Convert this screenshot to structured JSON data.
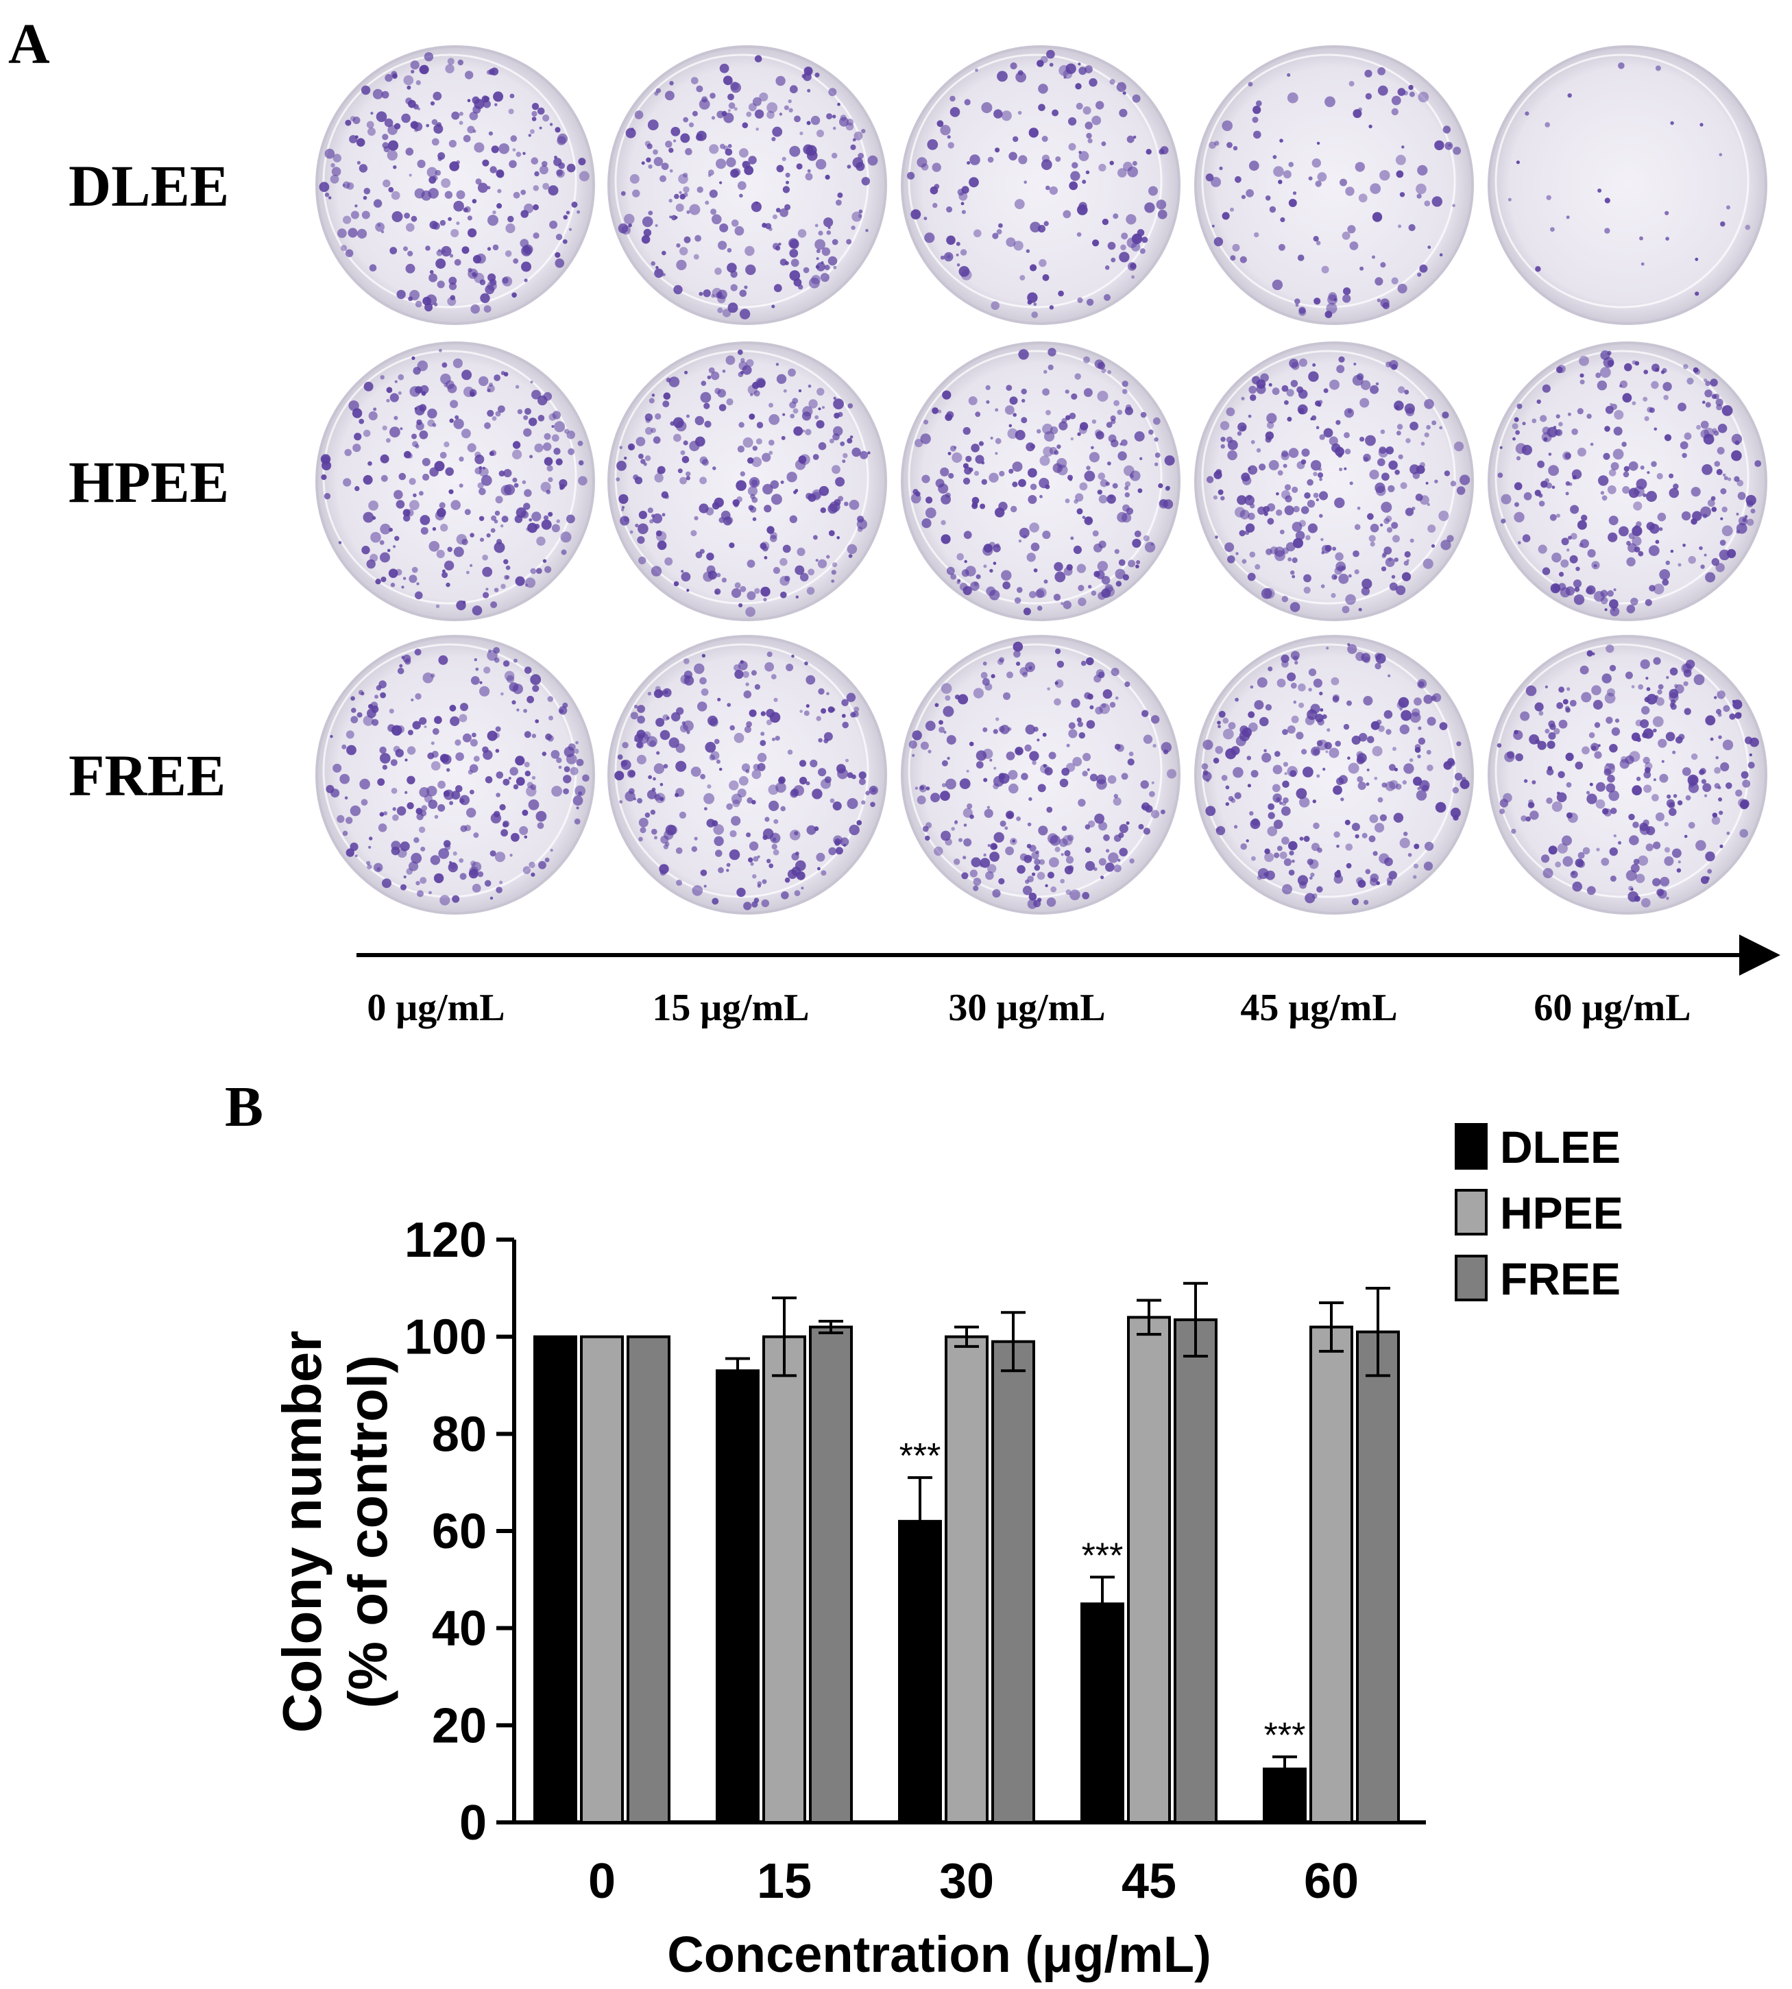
{
  "panel_a": {
    "label": "A",
    "rows": [
      "DLEE",
      "HPEE",
      "FREE"
    ],
    "concentrations": [
      "0 μg/mL",
      "15 μg/mL",
      "30 μg/mL",
      "45 μg/mL",
      "60 μg/mL"
    ],
    "colony_density": [
      [
        1.0,
        0.95,
        0.62,
        0.45,
        0.1
      ],
      [
        1.0,
        1.0,
        1.0,
        1.04,
        1.02
      ],
      [
        1.0,
        1.02,
        0.99,
        1.03,
        1.01
      ]
    ],
    "stain_color": "#5b3fa0"
  },
  "panel_b": {
    "label": "B"
  },
  "chart_data": {
    "type": "bar",
    "categories": [
      "0",
      "15",
      "30",
      "45",
      "60"
    ],
    "series": [
      {
        "name": "DLEE",
        "values": [
          100,
          93,
          62,
          45,
          11
        ],
        "errors": [
          0,
          2.5,
          9,
          5.5,
          2.5
        ],
        "color": "#000000"
      },
      {
        "name": "HPEE",
        "values": [
          100,
          100,
          100,
          104,
          102
        ],
        "errors": [
          0,
          8,
          2,
          3.5,
          5
        ],
        "color": "#a6a6a6"
      },
      {
        "name": "FREE",
        "values": [
          100,
          102,
          99,
          103.5,
          101
        ],
        "errors": [
          0,
          1.2,
          6,
          7.5,
          9
        ],
        "color": "#7f7f7f"
      }
    ],
    "annotations": [
      {
        "series": "DLEE",
        "category": "30",
        "text": "***"
      },
      {
        "series": "DLEE",
        "category": "45",
        "text": "***"
      },
      {
        "series": "DLEE",
        "category": "60",
        "text": "***"
      }
    ],
    "xlabel": "Concentration (μg/mL)",
    "ylabel": [
      "Colony number",
      "(% of control)"
    ],
    "ylim": [
      0,
      120
    ],
    "yticks": [
      0,
      20,
      40,
      60,
      80,
      100,
      120
    ],
    "grid": false,
    "legend_position": "top-right"
  }
}
